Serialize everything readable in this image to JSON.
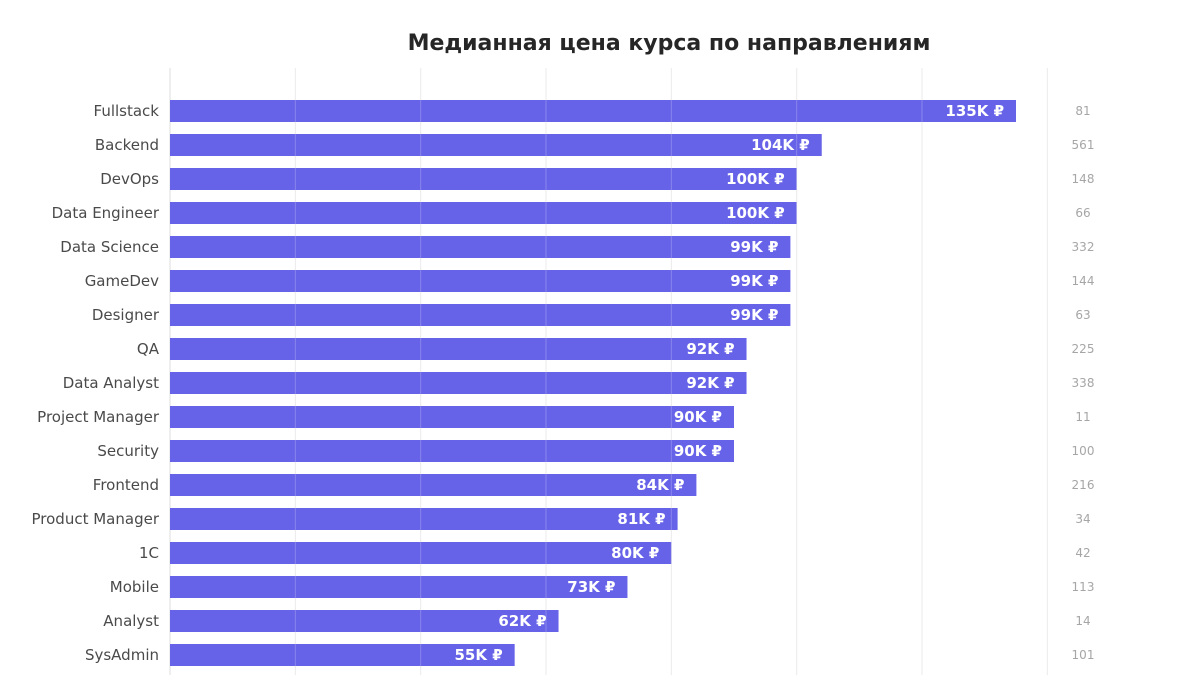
{
  "chart_data": {
    "type": "bar",
    "orientation": "horizontal",
    "title": "Медианная цена курса по направлениям",
    "xlabel": "",
    "ylabel": "",
    "categories": [
      "Fullstack",
      "Backend",
      "DevOps",
      "Data Engineer",
      "Data Science",
      "GameDev",
      "Designer",
      "QA",
      "Data Analyst",
      "Project Manager",
      "Security",
      "Frontend",
      "Product Manager",
      "1C",
      "Mobile",
      "Analyst",
      "SysAdmin"
    ],
    "values": [
      135000,
      104000,
      100000,
      100000,
      99000,
      99000,
      99000,
      92000,
      92000,
      90000,
      90000,
      84000,
      81000,
      80000,
      73000,
      62000,
      55000
    ],
    "value_labels": [
      "135K ₽",
      "104K ₽",
      "100K ₽",
      "100K ₽",
      "99K ₽",
      "99K ₽",
      "99K ₽",
      "92K ₽",
      "92K ₽",
      "90K ₽",
      "90K ₽",
      "84K ₽",
      "81K ₽",
      "80K ₽",
      "73K ₽",
      "62K ₽",
      "55K ₽"
    ],
    "counts": [
      "81",
      "561",
      "148",
      "66",
      "332",
      "144",
      "63",
      "225",
      "338",
      "11",
      "100",
      "216",
      "34",
      "42",
      "113",
      "14",
      "101"
    ],
    "xlim": [
      0,
      140000
    ],
    "grid": true,
    "bar_color": "#6763e8",
    "grid_color": "#e6e6e6",
    "axis_color": "#dddddd"
  }
}
